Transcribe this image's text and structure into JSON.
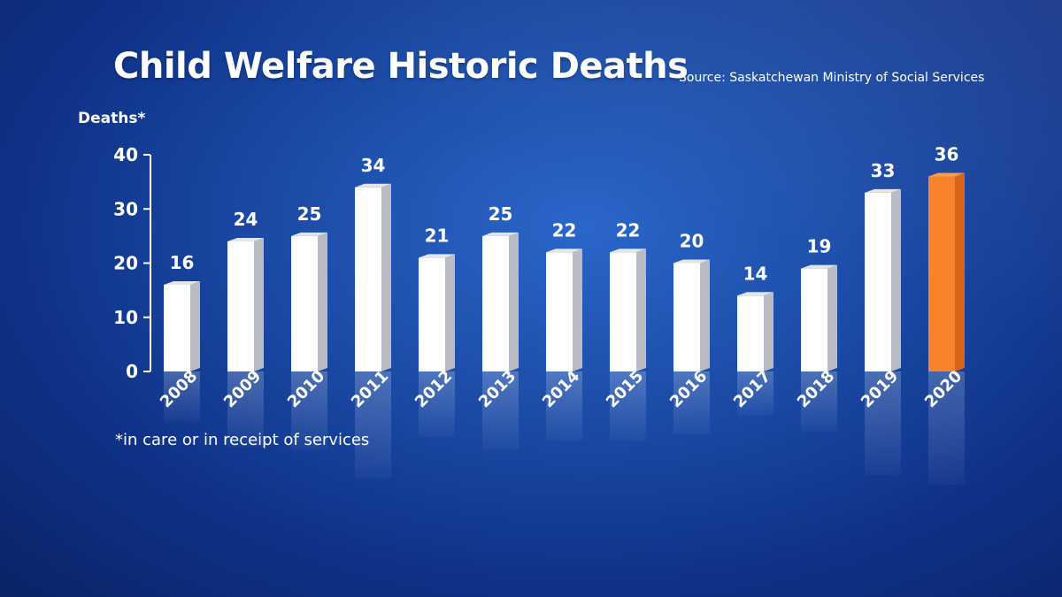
{
  "title": "Child Welfare Historic Deaths",
  "source": "Source: Saskatchewan Ministry of Social Services",
  "footnote": "*in care or in receipt of services",
  "colors": {
    "bar": "#ffffff",
    "bar_side": "#b9bcc4",
    "highlight": "#f7842c",
    "highlight_side": "#d8661a",
    "text": "#ffffff"
  },
  "chart_data": {
    "type": "bar",
    "title": "Child Welfare Historic Deaths",
    "ylabel": "Deaths*",
    "xlabel": "",
    "categories": [
      "2008",
      "2009",
      "2010",
      "2011",
      "2012",
      "2013",
      "2014",
      "2015",
      "2016",
      "2017",
      "2018",
      "2019",
      "2020"
    ],
    "values": [
      16,
      24,
      25,
      34,
      21,
      25,
      22,
      22,
      20,
      14,
      19,
      33,
      36
    ],
    "highlight_category": "2020",
    "ylim": [
      0,
      40
    ],
    "yticks": [
      0,
      10,
      20,
      30,
      40
    ],
    "grid": false,
    "data_labels": true
  }
}
